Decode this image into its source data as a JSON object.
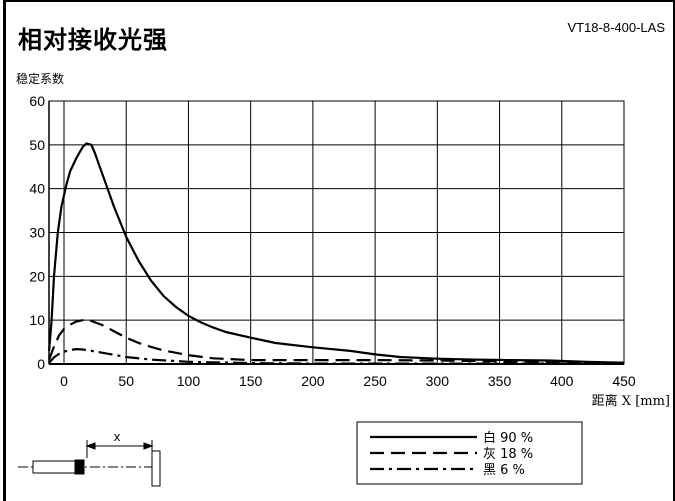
{
  "title": "相对接收光强",
  "product_code": "VT18-8-400-LAS",
  "chart_data": {
    "type": "line",
    "ylabel": "稳定系数",
    "xlabel": "距离 X [mm]",
    "xlim": [
      0,
      450
    ],
    "ylim": [
      0,
      60
    ],
    "xticks": [
      0,
      50,
      100,
      150,
      200,
      250,
      300,
      350,
      400,
      450
    ],
    "yticks": [
      0,
      10,
      20,
      30,
      40,
      50,
      60
    ],
    "grid": true,
    "legend_position": "bottom-right",
    "series": [
      {
        "name": "白 90 %",
        "style": "solid",
        "x": [
          -12,
          -10,
          -8,
          -5,
          -2,
          2,
          5,
          10,
          15,
          18,
          22,
          25,
          30,
          35,
          40,
          50,
          60,
          70,
          80,
          90,
          100,
          110,
          120,
          130,
          150,
          170,
          200,
          230,
          250,
          270,
          300,
          330,
          360,
          390,
          420,
          450
        ],
        "y": [
          3,
          10,
          20,
          30,
          36,
          41,
          44,
          47,
          49.5,
          50.3,
          50,
          48,
          44,
          40,
          36,
          29,
          23.5,
          19,
          15.5,
          13,
          11,
          9.5,
          8.3,
          7.3,
          6,
          4.8,
          3.8,
          3,
          2.2,
          1.6,
          1.2,
          1,
          0.9,
          0.8,
          0.5,
          0.3
        ]
      },
      {
        "name": "灰 18 %",
        "style": "dash",
        "x": [
          -12,
          -8,
          -4,
          0,
          5,
          10,
          15,
          20,
          25,
          30,
          40,
          50,
          60,
          70,
          80,
          100,
          120,
          150,
          200,
          250,
          300,
          350,
          400,
          450
        ],
        "y": [
          1,
          4,
          6.5,
          8,
          9,
          9.7,
          10,
          10,
          9.5,
          9,
          7.5,
          6,
          4.8,
          3.9,
          3.1,
          2,
          1.3,
          0.9,
          0.9,
          0.9,
          0.8,
          0.6,
          0.4,
          0.3
        ]
      },
      {
        "name": "黑 6 %",
        "style": "dashdot",
        "x": [
          -12,
          -8,
          -4,
          0,
          5,
          10,
          15,
          20,
          30,
          40,
          50,
          70,
          100,
          150,
          200,
          300,
          400,
          450
        ],
        "y": [
          0.3,
          1.5,
          2.3,
          2.8,
          3.2,
          3.4,
          3.3,
          3.1,
          2.6,
          2.1,
          1.6,
          1,
          0.5,
          0.2,
          0.1,
          0.1,
          0.1,
          0.1
        ]
      }
    ]
  },
  "diagram": {
    "x_label": "x"
  }
}
